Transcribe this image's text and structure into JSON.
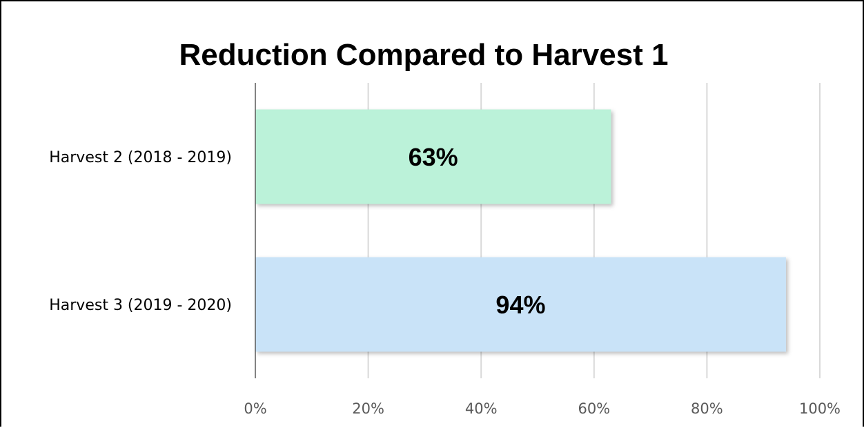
{
  "chart_data": {
    "type": "bar",
    "orientation": "horizontal",
    "title": "Reduction Compared to Harvest 1",
    "xlabel": "",
    "ylabel": "",
    "categories": [
      "Harvest 2 (2018 - 2019)",
      "Harvest 3 (2019 - 2020)"
    ],
    "values": [
      0.63,
      0.94
    ],
    "data_labels": [
      "63%",
      "94%"
    ],
    "bar_colors": [
      "#bbf2d9",
      "#c9e3f8"
    ],
    "xlim": [
      0,
      1
    ],
    "x_ticks": [
      0,
      0.2,
      0.4,
      0.6,
      0.8,
      1.0
    ],
    "x_tick_labels": [
      "0%",
      "20%",
      "40%",
      "60%",
      "80%",
      "100%"
    ],
    "grid": true,
    "legend": "none"
  }
}
